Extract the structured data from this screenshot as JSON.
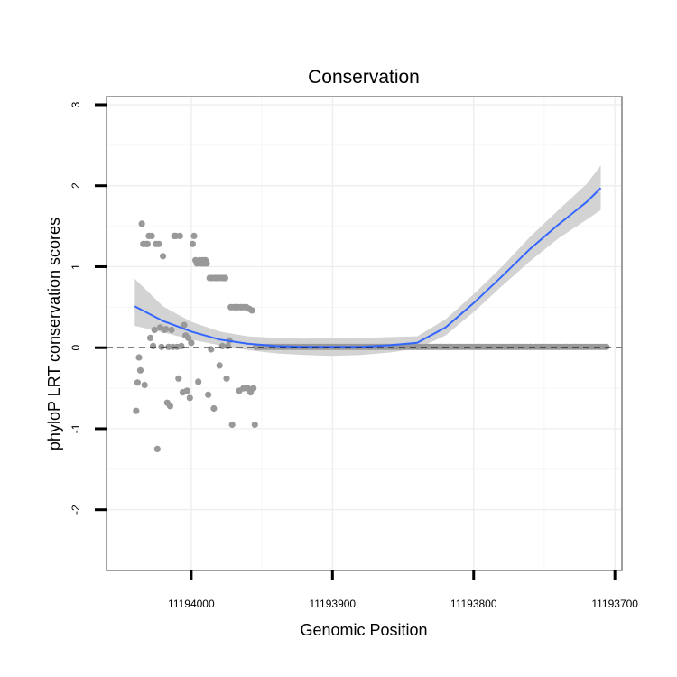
{
  "chart_data": {
    "type": "scatter",
    "title": "Conservation",
    "xlabel": "Genomic Position",
    "ylabel": "phyloP LRT conservation scores",
    "x_reversed": true,
    "xlim": [
      11194060,
      11193695
    ],
    "ylim": [
      -2.75,
      3.1
    ],
    "x_ticks": [
      11194000,
      11193900,
      11193800,
      11193700
    ],
    "x_tick_labels": [
      "11194000",
      "11193900",
      "11193800",
      "11193700"
    ],
    "y_ticks": [
      -2,
      -1,
      0,
      1,
      2,
      3
    ],
    "y_tick_labels": [
      "-2",
      "-1",
      "0",
      "1",
      "2",
      "3"
    ],
    "reference_line": {
      "y": 0,
      "style": "dashed"
    },
    "colors": {
      "points": "#999999",
      "fit": "#3366ff",
      "band": "#d3d3d3",
      "reference": "#000000"
    },
    "series": [
      {
        "name": "scores",
        "points": [
          [
            11194039,
            -0.78
          ],
          [
            11194038,
            -0.43
          ],
          [
            11194037,
            -0.12
          ],
          [
            11194036,
            -0.28
          ],
          [
            11194035,
            1.53
          ],
          [
            11194034,
            1.28
          ],
          [
            11194033,
            -0.46
          ],
          [
            11194032,
            1.28
          ],
          [
            11194031,
            1.28
          ],
          [
            11194030,
            1.38
          ],
          [
            11194029,
            0.12
          ],
          [
            11194028,
            1.38
          ],
          [
            11194027,
            0.02
          ],
          [
            11194026,
            0.22
          ],
          [
            11194025,
            1.28
          ],
          [
            11194024,
            -1.25
          ],
          [
            11194023,
            1.28
          ],
          [
            11194022,
            0.25
          ],
          [
            11194021,
            0.01
          ],
          [
            11194020,
            1.13
          ],
          [
            11194019,
            0.22
          ],
          [
            11194018,
            0.23
          ],
          [
            11194017,
            -0.68
          ],
          [
            11194016,
            0.01
          ],
          [
            11194015,
            -0.72
          ],
          [
            11194014,
            0.22
          ],
          [
            11194013,
            0.01
          ],
          [
            11194012,
            1.38
          ],
          [
            11194011,
            1.38
          ],
          [
            11194010,
            0.01
          ],
          [
            11194009,
            -0.38
          ],
          [
            11194008,
            1.38
          ],
          [
            11194007,
            0.02
          ],
          [
            11194006,
            -0.55
          ],
          [
            11194005,
            0.28
          ],
          [
            11194004,
            0.15
          ],
          [
            11194003,
            -0.53
          ],
          [
            11194002,
            0.12
          ],
          [
            11194001,
            -0.62
          ],
          [
            11194000,
            0.06
          ],
          [
            11193999,
            1.28
          ],
          [
            11193998,
            1.38
          ],
          [
            11193997,
            1.08
          ],
          [
            11193996,
            1.04
          ],
          [
            11193995,
            -0.42
          ],
          [
            11193994,
            1.08
          ],
          [
            11193993,
            1.04
          ],
          [
            11193992,
            1.08
          ],
          [
            11193991,
            1.04
          ],
          [
            11193990,
            1.08
          ],
          [
            11193989,
            1.04
          ],
          [
            11193988,
            -0.58
          ],
          [
            11193987,
            0.86
          ],
          [
            11193986,
            -0.02
          ],
          [
            11193985,
            0.86
          ],
          [
            11193984,
            -0.75
          ],
          [
            11193983,
            0.86
          ],
          [
            11193982,
            0.86
          ],
          [
            11193981,
            0.86
          ],
          [
            11193980,
            -0.22
          ],
          [
            11193979,
            0.86
          ],
          [
            11193978,
            0.02
          ],
          [
            11193977,
            0.86
          ],
          [
            11193976,
            0.86
          ],
          [
            11193975,
            -0.38
          ],
          [
            11193974,
            0.02
          ],
          [
            11193973,
            0.09
          ],
          [
            11193972,
            0.5
          ],
          [
            11193971,
            -0.95
          ],
          [
            11193970,
            0.5
          ],
          [
            11193969,
            0.5
          ],
          [
            11193968,
            0.5
          ],
          [
            11193967,
            0.5
          ],
          [
            11193966,
            -0.53
          ],
          [
            11193965,
            0.5
          ],
          [
            11193964,
            0.5
          ],
          [
            11193963,
            -0.5
          ],
          [
            11193962,
            0.5
          ],
          [
            11193961,
            0.5
          ],
          [
            11193960,
            -0.5
          ],
          [
            11193959,
            0.48
          ],
          [
            11193958,
            -0.55
          ],
          [
            11193957,
            0.46
          ],
          [
            11193956,
            -0.5
          ],
          [
            11193955,
            -0.95
          ],
          [
            11193954,
            0.01
          ],
          [
            11193952,
            0.01
          ],
          [
            11193950,
            0.01
          ],
          [
            11193948,
            0.01
          ],
          [
            11193946,
            0.01
          ],
          [
            11193944,
            0.01
          ],
          [
            11193942,
            0.01
          ],
          [
            11193940,
            0.01
          ],
          [
            11193938,
            0.01
          ],
          [
            11193936,
            0.01
          ],
          [
            11193934,
            0.01
          ],
          [
            11193932,
            0.01
          ],
          [
            11193930,
            0.01
          ],
          [
            11193928,
            0.01
          ],
          [
            11193926,
            0.01
          ],
          [
            11193924,
            0.01
          ],
          [
            11193922,
            0.01
          ],
          [
            11193920,
            0.01
          ],
          [
            11193918,
            0.01
          ],
          [
            11193916,
            0.01
          ],
          [
            11193914,
            0.01
          ],
          [
            11193912,
            0.01
          ],
          [
            11193910,
            0.01
          ],
          [
            11193908,
            0.01
          ],
          [
            11193906,
            0.01
          ],
          [
            11193904,
            0.01
          ],
          [
            11193902,
            0.01
          ],
          [
            11193900,
            0.01
          ],
          [
            11193898,
            0.01
          ],
          [
            11193896,
            0.01
          ],
          [
            11193894,
            0.01
          ],
          [
            11193892,
            0.01
          ],
          [
            11193890,
            0.01
          ],
          [
            11193888,
            0.01
          ],
          [
            11193886,
            0.01
          ],
          [
            11193884,
            0.01
          ],
          [
            11193882,
            0.01
          ],
          [
            11193880,
            0.01
          ],
          [
            11193878,
            0.01
          ],
          [
            11193876,
            0.01
          ],
          [
            11193874,
            0.01
          ],
          [
            11193872,
            0.01
          ],
          [
            11193870,
            0.01
          ],
          [
            11193868,
            0.01
          ],
          [
            11193866,
            0.01
          ],
          [
            11193864,
            0.01
          ],
          [
            11193862,
            0.01
          ],
          [
            11193860,
            0.01
          ],
          [
            11193858,
            0.01
          ],
          [
            11193856,
            0.01
          ],
          [
            11193854,
            0.01
          ],
          [
            11193852,
            0.01
          ],
          [
            11193850,
            0.01
          ],
          [
            11193848,
            0.01
          ],
          [
            11193846,
            0.01
          ],
          [
            11193844,
            0.01
          ],
          [
            11193842,
            0.01
          ],
          [
            11193840,
            0.01
          ],
          [
            11193838,
            0.01
          ],
          [
            11193836,
            0.01
          ],
          [
            11193834,
            0.01
          ],
          [
            11193832,
            0.01
          ],
          [
            11193830,
            0.01
          ],
          [
            11193828,
            0.01
          ],
          [
            11193826,
            0.01
          ],
          [
            11193824,
            0.01
          ],
          [
            11193822,
            0.01
          ],
          [
            11193820,
            0.01
          ],
          [
            11193818,
            0.01
          ],
          [
            11193816,
            0.01
          ],
          [
            11193814,
            0.01
          ],
          [
            11193812,
            0.01
          ],
          [
            11193810,
            0.01
          ],
          [
            11193808,
            0.01
          ],
          [
            11193806,
            0.01
          ],
          [
            11193804,
            0.01
          ],
          [
            11193802,
            0.01
          ],
          [
            11193800,
            0.01
          ],
          [
            11193798,
            0.01
          ],
          [
            11193796,
            0.01
          ],
          [
            11193794,
            0.01
          ],
          [
            11193792,
            0.01
          ],
          [
            11193790,
            0.01
          ],
          [
            11193788,
            0.01
          ],
          [
            11193786,
            0.01
          ],
          [
            11193784,
            0.01
          ],
          [
            11193782,
            0.01
          ],
          [
            11193780,
            0.01
          ],
          [
            11193778,
            0.01
          ],
          [
            11193776,
            0.01
          ],
          [
            11193774,
            0.01
          ],
          [
            11193772,
            0.01
          ],
          [
            11193770,
            0.01
          ],
          [
            11193768,
            0.01
          ],
          [
            11193766,
            0.01
          ],
          [
            11193764,
            0.01
          ],
          [
            11193762,
            0.01
          ],
          [
            11193760,
            0.01
          ],
          [
            11193758,
            0.01
          ],
          [
            11193756,
            0.01
          ],
          [
            11193754,
            0.01
          ],
          [
            11193752,
            0.01
          ],
          [
            11193750,
            0.01
          ],
          [
            11193748,
            0.01
          ],
          [
            11193746,
            0.01
          ],
          [
            11193744,
            0.01
          ],
          [
            11193742,
            0.01
          ],
          [
            11193740,
            0.01
          ],
          [
            11193738,
            0.01
          ],
          [
            11193736,
            0.01
          ],
          [
            11193734,
            0.01
          ],
          [
            11193732,
            0.01
          ],
          [
            11193730,
            0.01
          ],
          [
            11193728,
            0.01
          ],
          [
            11193726,
            0.01
          ],
          [
            11193724,
            0.01
          ],
          [
            11193722,
            0.01
          ],
          [
            11193720,
            0.01
          ],
          [
            11193718,
            0.01
          ],
          [
            11193716,
            0.01
          ],
          [
            11193714,
            0.01
          ],
          [
            11193712,
            0.01
          ],
          [
            11193710,
            0.01
          ],
          [
            11193708,
            0.01
          ],
          [
            11193706,
            0.01
          ]
        ]
      }
    ],
    "smooth": {
      "x": [
        11194040,
        11194020,
        11194000,
        11193980,
        11193960,
        11193940,
        11193920,
        11193900,
        11193880,
        11193860,
        11193840,
        11193820,
        11193800,
        11193780,
        11193760,
        11193740,
        11193720,
        11193710
      ],
      "y": [
        0.51,
        0.33,
        0.2,
        0.1,
        0.05,
        0.02,
        0.01,
        0.01,
        0.01,
        0.03,
        0.06,
        0.25,
        0.55,
        0.88,
        1.22,
        1.52,
        1.8,
        1.97
      ],
      "lower": [
        0.27,
        0.19,
        0.1,
        0.03,
        -0.03,
        -0.07,
        -0.09,
        -0.1,
        -0.09,
        -0.06,
        -0.01,
        0.15,
        0.44,
        0.76,
        1.07,
        1.35,
        1.58,
        1.7
      ],
      "upper": [
        0.85,
        0.51,
        0.32,
        0.2,
        0.14,
        0.12,
        0.11,
        0.12,
        0.12,
        0.13,
        0.14,
        0.35,
        0.66,
        1.0,
        1.37,
        1.7,
        2.02,
        2.25
      ]
    }
  }
}
